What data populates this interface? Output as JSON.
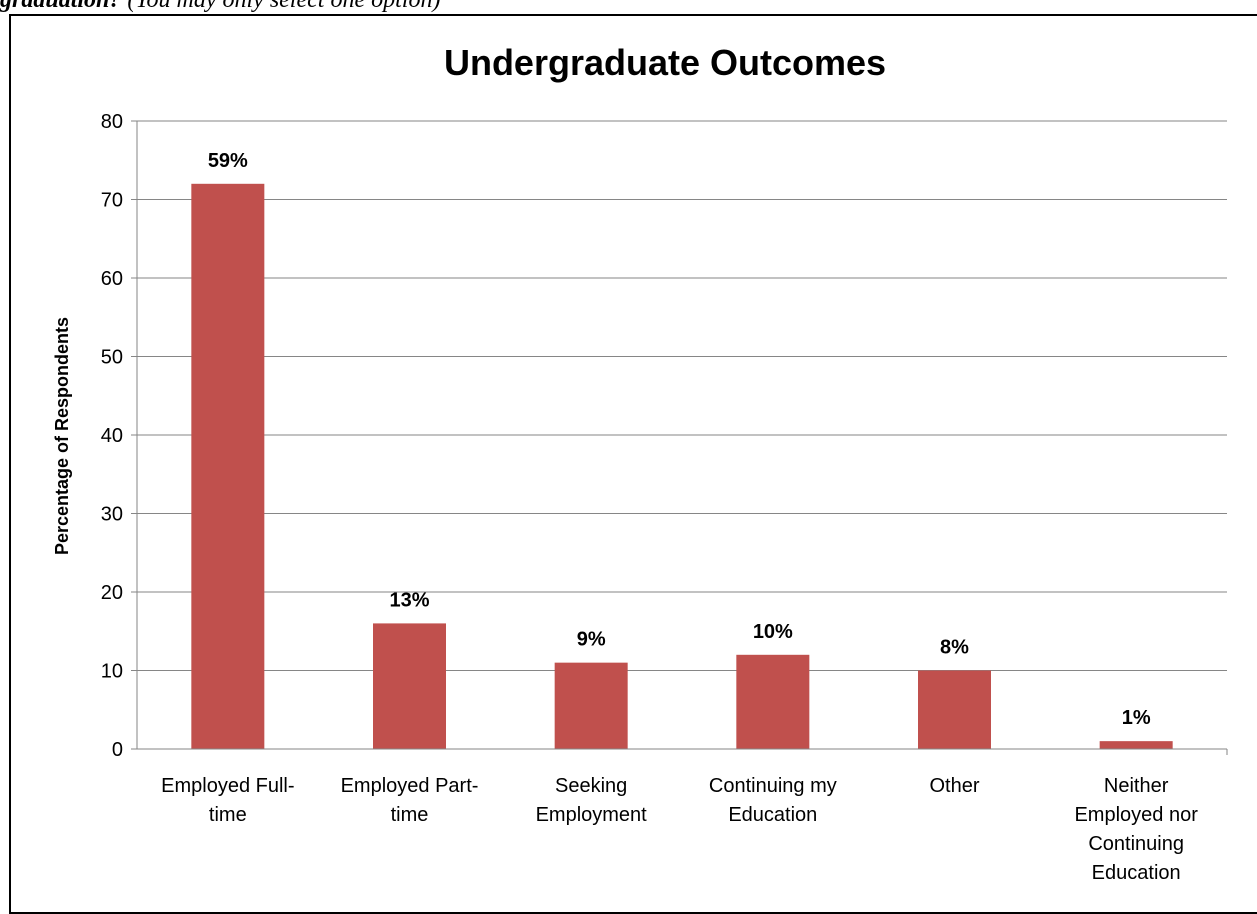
{
  "document": {
    "heading_question_fragment": "graduation?",
    "heading_instruction": "(You may only select one option)"
  },
  "chart_data": {
    "type": "bar",
    "title": "Undergraduate Outcomes",
    "xlabel": "",
    "ylabel": "Percentage of Respondents",
    "ylim": [
      0,
      80
    ],
    "yticks": [
      0,
      10,
      20,
      30,
      40,
      50,
      60,
      70,
      80
    ],
    "grid": true,
    "legend": "none",
    "categories": [
      "Employed Full-time",
      "Employed Part-time",
      "Seeking Employment",
      "Continuing my Education",
      "Other",
      "Neither Employed nor Continuing Education"
    ],
    "category_label_lines": [
      [
        "Employed Full-",
        "time"
      ],
      [
        "Employed Part-",
        "time"
      ],
      [
        "Seeking",
        "Employment"
      ],
      [
        "Continuing my",
        "Education"
      ],
      [
        "Other"
      ],
      [
        "Neither",
        "Employed nor",
        "Continuing",
        "Education"
      ]
    ],
    "values": [
      72,
      16,
      11,
      12,
      10,
      1
    ],
    "data_labels": [
      "59%",
      "13%",
      "9%",
      "10%",
      "8%",
      "1%"
    ],
    "colors": {
      "bar": "#c0504d",
      "grid": "#868686",
      "axis": "#868686"
    }
  }
}
